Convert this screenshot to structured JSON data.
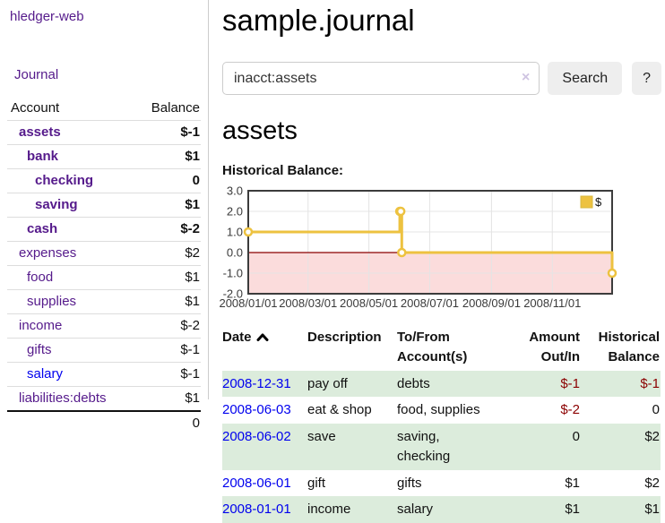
{
  "colors": {
    "link_purple": "#551a8b",
    "link_blue": "#0000ee",
    "negative_strong": "#8b0000",
    "negative_muted": "#bb6f6f",
    "row_stripe_green": "#dcecdc",
    "button_bg": "#eeeeee"
  },
  "sidebar": {
    "app_title": "hledger-web",
    "journal_link": "Journal",
    "accounts": {
      "header_account": "Account",
      "header_balance": "Balance",
      "rows": [
        {
          "name": "assets",
          "balance": "$-1",
          "level": 1,
          "bold": true,
          "negative": "strong"
        },
        {
          "name": "bank",
          "balance": "$1",
          "level": 2,
          "bold": true,
          "negative": "none"
        },
        {
          "name": "checking",
          "balance": "0",
          "level": 3,
          "bold": true,
          "negative": "none"
        },
        {
          "name": "saving",
          "balance": "$1",
          "level": 3,
          "bold": true,
          "negative": "none"
        },
        {
          "name": "cash",
          "balance": "$-2",
          "level": 2,
          "bold": true,
          "negative": "strong"
        },
        {
          "name": "expenses",
          "balance": "$2",
          "level": 1,
          "bold": false,
          "negative": "none"
        },
        {
          "name": "food",
          "balance": "$1",
          "level": 2,
          "bold": false,
          "negative": "none"
        },
        {
          "name": "supplies",
          "balance": "$1",
          "level": 2,
          "bold": false,
          "negative": "none"
        },
        {
          "name": "income",
          "balance": "$-2",
          "level": 1,
          "bold": false,
          "negative": "muted"
        },
        {
          "name": "gifts",
          "balance": "$-1",
          "level": 2,
          "bold": false,
          "negative": "muted"
        },
        {
          "name": "salary",
          "balance": "$-1",
          "level": 2,
          "bold": false,
          "negative": "muted",
          "link_color": "blue"
        },
        {
          "name": "liabilities:debts",
          "balance": "$1",
          "level": 1,
          "bold": false,
          "negative": "none"
        }
      ],
      "total": "0"
    }
  },
  "main": {
    "title": "sample.journal",
    "search": {
      "value": "inacct:assets",
      "clear_icon": "×",
      "search_button": "Search",
      "help_button": "?"
    },
    "account_heading": "assets",
    "section_label": "Historical Balance:"
  },
  "chart_data": {
    "type": "line",
    "title": "Historical Balance",
    "x_type": "time",
    "x_range": [
      "2008-01-01",
      "2008-12-31"
    ],
    "ylim": [
      -2.0,
      3.0
    ],
    "y_ticks": [
      "3.0",
      "2.0",
      "1.0",
      "0.0",
      "-1.0",
      "-2.0"
    ],
    "x_ticks": [
      {
        "label": "2008/01/01",
        "date": "2008-01-01"
      },
      {
        "label": "2008/03/01",
        "date": "2008-03-01"
      },
      {
        "label": "2008/05/01",
        "date": "2008-05-01"
      },
      {
        "label": "2008/07/01",
        "date": "2008-07-01"
      },
      {
        "label": "2008/09/01",
        "date": "2008-09-01"
      },
      {
        "label": "2008/11/01",
        "date": "2008-11-01"
      }
    ],
    "grid": true,
    "legend": {
      "position": "top-right",
      "label": "$"
    },
    "series": [
      {
        "name": "$",
        "color": "#edc240",
        "style": "step-after",
        "marker": "open-circle",
        "points": [
          [
            "2008-01-01",
            1
          ],
          [
            "2008-06-01",
            2
          ],
          [
            "2008-06-02",
            2
          ],
          [
            "2008-06-03",
            0
          ],
          [
            "2008-12-31",
            -1
          ]
        ]
      }
    ],
    "negative_region": {
      "from": 0,
      "to": -2,
      "fill": "#fbdcdc"
    },
    "zero_line_color": "#8b0000",
    "grid_color": "#e4e4e4",
    "border_color": "#3c3c3c",
    "tick_text_color": "#3a3a3a"
  },
  "register": {
    "headers": {
      "date": "Date",
      "description": "Description",
      "accounts": "To/From Account(s)",
      "amount": "Amount Out/In",
      "balance": "Historical Balance"
    },
    "sort_icon": "chevron-up",
    "rows": [
      {
        "date": "2008-12-31",
        "description": "pay off",
        "accounts": [
          "debts"
        ],
        "amount": "$-1",
        "amount_neg": true,
        "balance": "$-1",
        "balance_neg": true
      },
      {
        "date": "2008-06-03",
        "description": "eat & shop",
        "accounts": [
          "food, supplies"
        ],
        "amount": "$-2",
        "amount_neg": true,
        "balance": "0",
        "balance_neg": false
      },
      {
        "date": "2008-06-02",
        "description": "save",
        "accounts": [
          "saving,",
          "checking"
        ],
        "amount": "0",
        "amount_neg": false,
        "balance": "$2",
        "balance_neg": false
      },
      {
        "date": "2008-06-01",
        "description": "gift",
        "accounts": [
          "gifts"
        ],
        "amount": "$1",
        "amount_neg": false,
        "balance": "$2",
        "balance_neg": false
      },
      {
        "date": "2008-01-01",
        "description": "income",
        "accounts": [
          "salary"
        ],
        "amount": "$1",
        "amount_neg": false,
        "balance": "$1",
        "balance_neg": false
      }
    ]
  }
}
